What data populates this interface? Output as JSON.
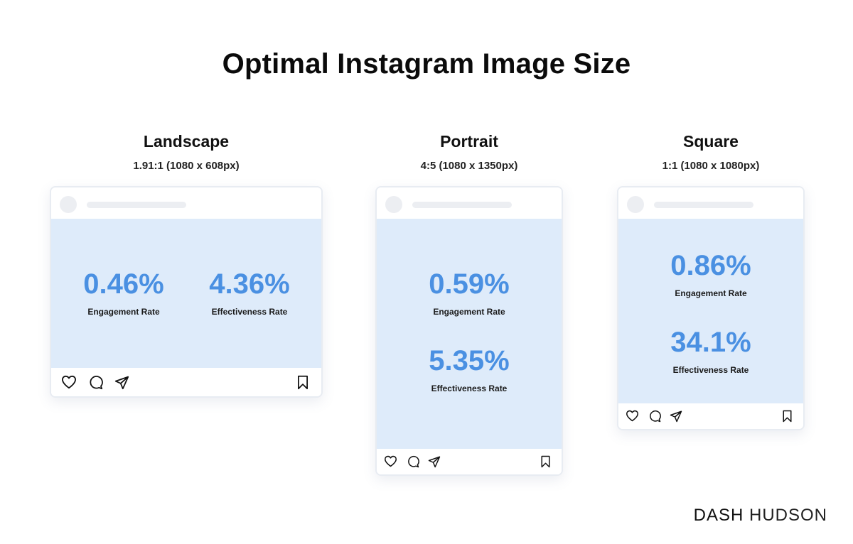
{
  "title": "Optimal Instagram Image Size",
  "columns": [
    {
      "name": "Landscape",
      "dimensions": "1.91:1 (1080 x 608px)",
      "metrics": [
        {
          "value": "0.46%",
          "label": "Engagement Rate"
        },
        {
          "value": "4.36%",
          "label": "Effectiveness Rate"
        }
      ]
    },
    {
      "name": "Portrait",
      "dimensions": "4:5 (1080 x 1350px)",
      "metrics": [
        {
          "value": "0.59%",
          "label": "Engagement Rate"
        },
        {
          "value": "5.35%",
          "label": "Effectiveness Rate"
        }
      ]
    },
    {
      "name": "Square",
      "dimensions": "1:1 (1080 x 1080px)",
      "metrics": [
        {
          "value": "0.86%",
          "label": "Engagement Rate"
        },
        {
          "value": "34.1%",
          "label": "Effectiveness Rate"
        }
      ]
    }
  ],
  "icons": [
    "heart-icon",
    "comment-icon",
    "send-icon",
    "bookmark-icon"
  ],
  "colors": {
    "accent": "#4a90e2",
    "media_bg": "#deebfa"
  },
  "brand": {
    "part1": "DASH",
    "part2": "HUDSON"
  }
}
